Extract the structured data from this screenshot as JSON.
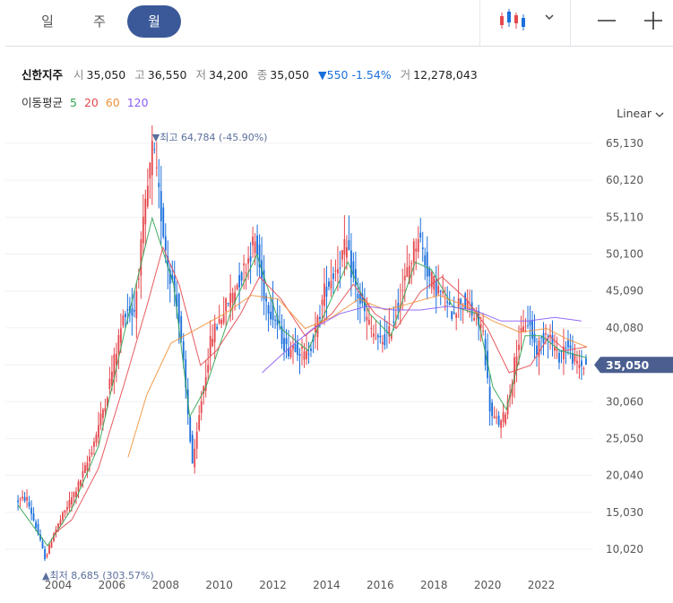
{
  "periods": [
    "일",
    "주",
    "월"
  ],
  "active_period": "월",
  "quote": {
    "name": "신한지주",
    "open_label": "시",
    "open": "35,050",
    "high_label": "고",
    "high": "36,550",
    "low_label": "저",
    "low": "34,200",
    "close_label": "종",
    "close": "35,050",
    "change": "▼550 -1.54%",
    "volume_label": "거",
    "volume": "12,278,043"
  },
  "ma": {
    "label": "이동평균",
    "items": [
      {
        "text": "5",
        "color": "#2ea44f"
      },
      {
        "text": "20",
        "color": "#e5484d"
      },
      {
        "text": "60",
        "color": "#f0913a"
      },
      {
        "text": "120",
        "color": "#8b5cf6"
      }
    ]
  },
  "scale_label": "Linear",
  "colors": {
    "up": "#e5484d",
    "down": "#1a6fdc",
    "accent": "#3b5998",
    "tag": "#4a5f8f"
  },
  "chart_data": {
    "type": "candlestick",
    "y_ticks": [
      "65,130",
      "60,120",
      "55,110",
      "50,100",
      "45,090",
      "40,080",
      "35,050",
      "30,060",
      "25,050",
      "20,040",
      "15,030",
      "10,020"
    ],
    "y_tick_values": [
      65130,
      60120,
      55110,
      50100,
      45090,
      40080,
      35050,
      30060,
      25050,
      20040,
      15030,
      10020
    ],
    "x_ticks": [
      "2004",
      "2006",
      "2008",
      "2010",
      "2012",
      "2014",
      "2016",
      "2018",
      "2020",
      "2022"
    ],
    "x_range": [
      2002.5,
      2023.7
    ],
    "current_price_tag": "35,050",
    "current_price": 35050,
    "max_annotation": "▼최고 64,784 (-45.90%)",
    "max": {
      "year": 2007.6,
      "value": 64784
    },
    "min_annotation": "▲최저 8,685 (303.57%)",
    "min": {
      "year": 2003.6,
      "value": 8685
    },
    "price_path": [
      [
        2002.5,
        16500
      ],
      [
        2002.9,
        17000
      ],
      [
        2003.3,
        12500
      ],
      [
        2003.6,
        8685
      ],
      [
        2003.9,
        12000
      ],
      [
        2004.3,
        15000
      ],
      [
        2004.8,
        18500
      ],
      [
        2005.2,
        22000
      ],
      [
        2005.6,
        27000
      ],
      [
        2005.9,
        31000
      ],
      [
        2006.3,
        38000
      ],
      [
        2006.6,
        43000
      ],
      [
        2006.9,
        42000
      ],
      [
        2007.2,
        52000
      ],
      [
        2007.6,
        64784
      ],
      [
        2007.9,
        56000
      ],
      [
        2008.2,
        48000
      ],
      [
        2008.5,
        44000
      ],
      [
        2008.8,
        33000
      ],
      [
        2009.1,
        21000
      ],
      [
        2009.4,
        30000
      ],
      [
        2009.8,
        39000
      ],
      [
        2010.2,
        42000
      ],
      [
        2010.6,
        45000
      ],
      [
        2011.0,
        48000
      ],
      [
        2011.4,
        52000
      ],
      [
        2011.8,
        44000
      ],
      [
        2012.2,
        41000
      ],
      [
        2012.6,
        37000
      ],
      [
        2012.9,
        38000
      ],
      [
        2013.3,
        36000
      ],
      [
        2013.7,
        40000
      ],
      [
        2014.0,
        45000
      ],
      [
        2014.4,
        48000
      ],
      [
        2014.8,
        51000
      ],
      [
        2015.2,
        45000
      ],
      [
        2015.6,
        41000
      ],
      [
        2016.0,
        38000
      ],
      [
        2016.4,
        39000
      ],
      [
        2016.8,
        44000
      ],
      [
        2017.2,
        49000
      ],
      [
        2017.5,
        53000
      ],
      [
        2017.9,
        47000
      ],
      [
        2018.3,
        45000
      ],
      [
        2018.7,
        42000
      ],
      [
        2019.1,
        44000
      ],
      [
        2019.5,
        42000
      ],
      [
        2019.9,
        40000
      ],
      [
        2020.2,
        28000
      ],
      [
        2020.6,
        27000
      ],
      [
        2020.9,
        31000
      ],
      [
        2021.2,
        38000
      ],
      [
        2021.6,
        41000
      ],
      [
        2021.9,
        37000
      ],
      [
        2022.3,
        40000
      ],
      [
        2022.7,
        36000
      ],
      [
        2023.0,
        38000
      ],
      [
        2023.4,
        35000
      ],
      [
        2023.7,
        35050
      ]
    ],
    "ma_lines": [
      {
        "name": "5",
        "color": "#2ea44f",
        "points": [
          [
            2002.5,
            16000
          ],
          [
            2003.6,
            10500
          ],
          [
            2004.5,
            15500
          ],
          [
            2005.5,
            24000
          ],
          [
            2006.5,
            40000
          ],
          [
            2007.5,
            55000
          ],
          [
            2008.3,
            46000
          ],
          [
            2008.9,
            28000
          ],
          [
            2009.5,
            32000
          ],
          [
            2010.5,
            43000
          ],
          [
            2011.4,
            50000
          ],
          [
            2012.3,
            40000
          ],
          [
            2013.3,
            37000
          ],
          [
            2014.3,
            45000
          ],
          [
            2014.8,
            49000
          ],
          [
            2015.6,
            42000
          ],
          [
            2016.4,
            39000
          ],
          [
            2017.3,
            49000
          ],
          [
            2017.9,
            48000
          ],
          [
            2018.7,
            43000
          ],
          [
            2019.6,
            42000
          ],
          [
            2020.2,
            32000
          ],
          [
            2020.7,
            29000
          ],
          [
            2021.4,
            39000
          ],
          [
            2022.0,
            39000
          ],
          [
            2022.7,
            37000
          ],
          [
            2023.7,
            36000
          ]
        ]
      },
      {
        "name": "20",
        "color": "#e5484d",
        "points": [
          [
            2003.8,
            12000
          ],
          [
            2004.5,
            14000
          ],
          [
            2005.5,
            21000
          ],
          [
            2006.5,
            33000
          ],
          [
            2007.3,
            43000
          ],
          [
            2007.9,
            51000
          ],
          [
            2008.5,
            46000
          ],
          [
            2009.3,
            35000
          ],
          [
            2009.9,
            37000
          ],
          [
            2010.8,
            42000
          ],
          [
            2011.5,
            47000
          ],
          [
            2012.3,
            44000
          ],
          [
            2013.2,
            39000
          ],
          [
            2014.2,
            42000
          ],
          [
            2015.0,
            46000
          ],
          [
            2015.8,
            42000
          ],
          [
            2016.6,
            40000
          ],
          [
            2017.5,
            45000
          ],
          [
            2018.3,
            47000
          ],
          [
            2019.2,
            44000
          ],
          [
            2020.0,
            40000
          ],
          [
            2020.8,
            34000
          ],
          [
            2021.6,
            35000
          ],
          [
            2022.3,
            39000
          ],
          [
            2022.9,
            37000
          ],
          [
            2023.7,
            37500
          ]
        ]
      },
      {
        "name": "60",
        "color": "#f0913a",
        "points": [
          [
            2006.6,
            22500
          ],
          [
            2007.3,
            31000
          ],
          [
            2008.2,
            38000
          ],
          [
            2009.2,
            40000
          ],
          [
            2010.2,
            42000
          ],
          [
            2011.2,
            44500
          ],
          [
            2012.2,
            44000
          ],
          [
            2013.2,
            40000
          ],
          [
            2014.2,
            41500
          ],
          [
            2015.2,
            44000
          ],
          [
            2016.2,
            42500
          ],
          [
            2017.2,
            43500
          ],
          [
            2018.2,
            44500
          ],
          [
            2019.2,
            43000
          ],
          [
            2020.2,
            41000
          ],
          [
            2021.2,
            39500
          ],
          [
            2022.2,
            40000
          ],
          [
            2023.0,
            38500
          ],
          [
            2023.7,
            37500
          ]
        ]
      },
      {
        "name": "120",
        "color": "#8b5cf6",
        "points": [
          [
            2011.6,
            34000
          ],
          [
            2012.5,
            37000
          ],
          [
            2013.5,
            40000
          ],
          [
            2014.5,
            42000
          ],
          [
            2015.5,
            43000
          ],
          [
            2016.5,
            42500
          ],
          [
            2017.5,
            42500
          ],
          [
            2018.5,
            43000
          ],
          [
            2019.5,
            42500
          ],
          [
            2020.5,
            41000
          ],
          [
            2021.5,
            41000
          ],
          [
            2022.5,
            41500
          ],
          [
            2023.5,
            41000
          ]
        ]
      }
    ]
  }
}
